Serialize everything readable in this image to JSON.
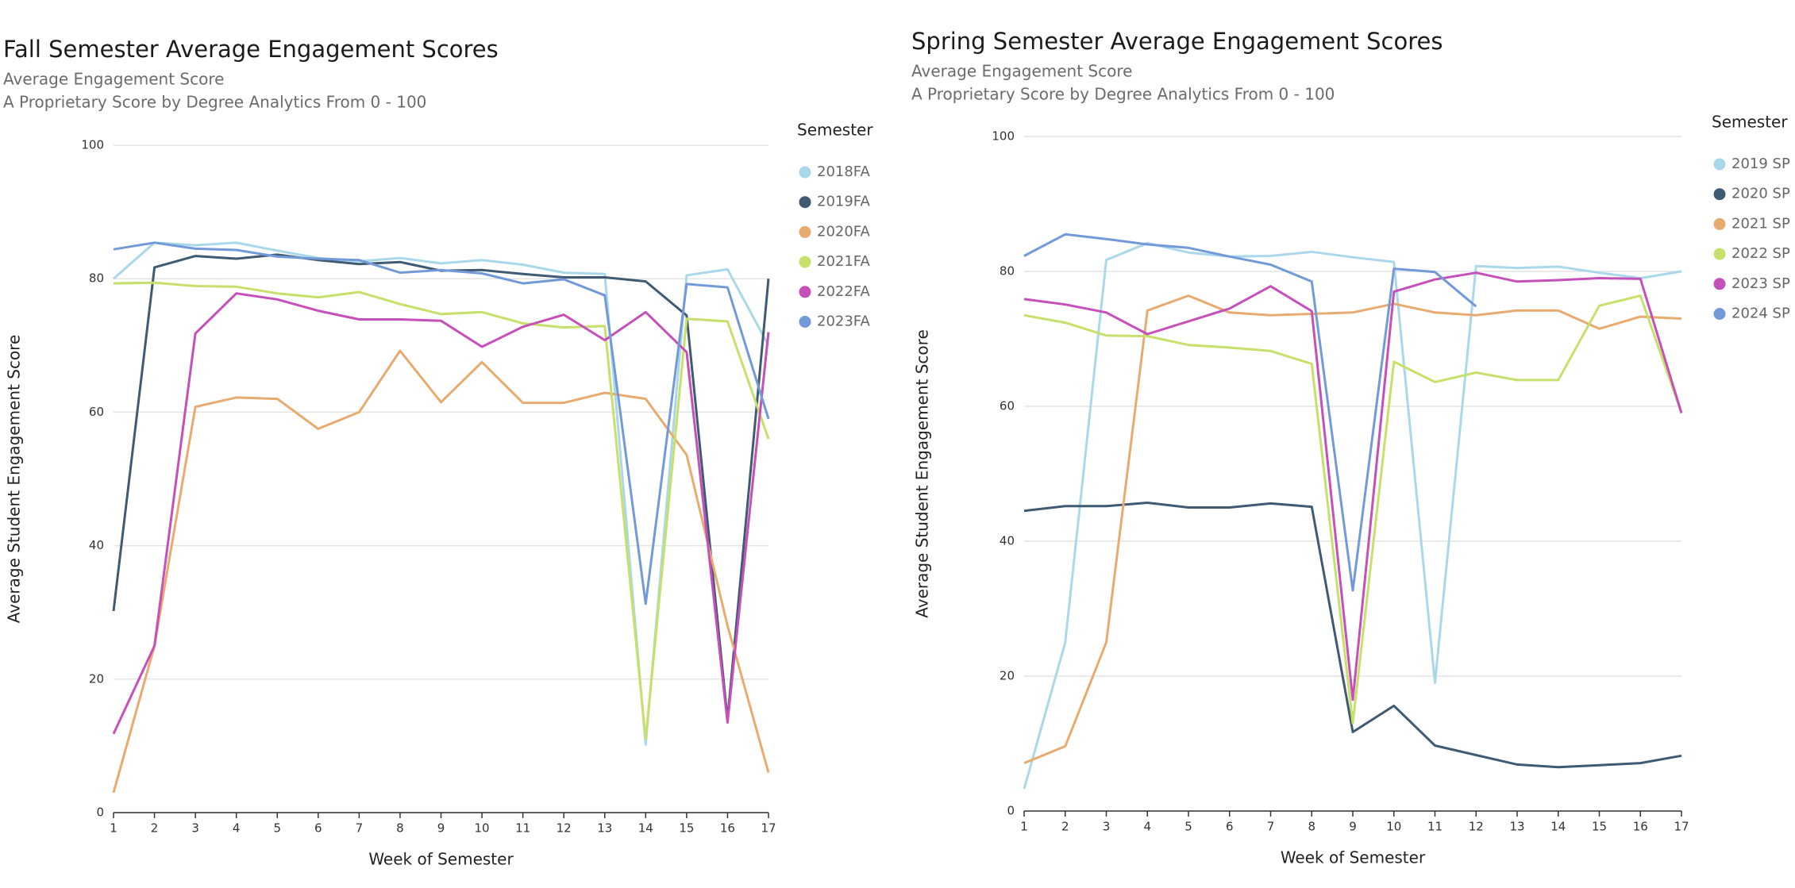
{
  "chart_data": [
    {
      "type": "line",
      "title": "Fall Semester Average Engagement Scores",
      "subtitles": [
        "Average Engagement Score",
        "A Proprietary Score by Degree Analytics From 0 - 100"
      ],
      "x_label": "Week of Semester",
      "y_label": "Average Student Engagement Score",
      "legend_title": "Semester",
      "x": [
        1,
        2,
        3,
        4,
        5,
        6,
        7,
        8,
        9,
        10,
        11,
        12,
        13,
        14,
        15,
        16,
        17
      ],
      "xlim": [
        1,
        17
      ],
      "xticks": [
        1,
        2,
        3,
        4,
        5,
        6,
        7,
        8,
        9,
        10,
        11,
        12,
        13,
        14,
        15,
        16,
        17
      ],
      "ylim": [
        0,
        100
      ],
      "yticks": [
        0,
        20,
        40,
        60,
        80,
        100
      ],
      "grid": true,
      "legend": "right",
      "series": [
        {
          "name": "2018FA",
          "color": "#a9d8ea",
          "values": [
            80.0,
            85.4,
            85.0,
            85.4,
            84.2,
            83.1,
            82.6,
            83.1,
            82.3,
            82.8,
            82.1,
            80.9,
            80.7,
            10.2,
            80.5,
            81.4,
            70.0
          ]
        },
        {
          "name": "2019FA",
          "color": "#3f5a73",
          "values": [
            30.2,
            81.7,
            83.4,
            83.0,
            83.6,
            82.8,
            82.2,
            82.5,
            81.2,
            81.3,
            80.7,
            80.2,
            80.2,
            79.6,
            74.5,
            14.0,
            80.0
          ]
        },
        {
          "name": "2020FA",
          "color": "#e8ab6f",
          "values": [
            3.0,
            25.0,
            60.8,
            62.2,
            62.0,
            57.5,
            60.0,
            69.2,
            61.5,
            67.5,
            61.4,
            61.4,
            62.9,
            62.0,
            53.6,
            28.0,
            6.0
          ]
        },
        {
          "name": "2021FA",
          "color": "#c7e06b",
          "values": [
            79.3,
            79.4,
            78.9,
            78.8,
            77.8,
            77.2,
            78.0,
            76.2,
            74.7,
            75.0,
            73.3,
            72.7,
            72.9,
            11.0,
            74.0,
            73.6,
            56.0
          ]
        },
        {
          "name": "2022FA",
          "color": "#c550b9",
          "values": [
            11.8,
            25.0,
            71.8,
            77.8,
            76.9,
            75.2,
            73.9,
            73.9,
            73.7,
            69.8,
            72.8,
            74.6,
            70.8,
            75.0,
            69.0,
            13.5,
            72.0
          ]
        },
        {
          "name": "2023FA",
          "color": "#7299d8",
          "values": [
            84.4,
            85.4,
            84.5,
            84.3,
            83.3,
            83.0,
            82.8,
            80.9,
            81.3,
            80.8,
            79.3,
            79.9,
            77.5,
            31.3,
            79.2,
            78.7,
            59.0
          ]
        }
      ]
    },
    {
      "type": "line",
      "title": "Spring Semester Average Engagement Scores",
      "subtitles": [
        "Average Engagement Score",
        "A Proprietary Score by Degree Analytics From 0 - 100"
      ],
      "x_label": "Week of Semester",
      "y_label": "Average Student Engagement Score",
      "legend_title": "Semester",
      "x": [
        1,
        2,
        3,
        4,
        5,
        6,
        7,
        8,
        9,
        10,
        11,
        12,
        13,
        14,
        15,
        16,
        17
      ],
      "xlim": [
        1,
        17
      ],
      "xticks": [
        1,
        2,
        3,
        4,
        5,
        6,
        7,
        8,
        9,
        10,
        11,
        12,
        13,
        14,
        15,
        16,
        17
      ],
      "ylim": [
        0,
        100
      ],
      "yticks": [
        0,
        20,
        40,
        60,
        80,
        100
      ],
      "grid": true,
      "legend": "right",
      "series": [
        {
          "name": "2019 SP",
          "color": "#a9d8ea",
          "values": [
            3.3,
            25.0,
            81.7,
            84.2,
            82.8,
            82.2,
            82.3,
            82.9,
            82.1,
            81.4,
            19.0,
            80.8,
            80.5,
            80.7,
            79.8,
            79.0,
            80.0
          ]
        },
        {
          "name": "2020 SP",
          "color": "#3f5a73",
          "values": [
            44.5,
            45.2,
            45.2,
            45.7,
            45.0,
            45.0,
            45.6,
            45.1,
            11.7,
            15.6,
            9.7,
            8.3,
            6.9,
            6.5,
            6.8,
            7.1,
            8.2
          ]
        },
        {
          "name": "2021 SP",
          "color": "#e8ab6f",
          "values": [
            7.1,
            9.6,
            25.0,
            74.2,
            76.4,
            73.9,
            73.5,
            73.7,
            73.9,
            75.2,
            73.9,
            73.5,
            74.2,
            74.2,
            71.5,
            73.3,
            73.0
          ]
        },
        {
          "name": "2022 SP",
          "color": "#c7e06b",
          "values": [
            73.5,
            72.4,
            70.5,
            70.4,
            69.1,
            68.7,
            68.2,
            66.3,
            13.0,
            66.6,
            63.6,
            65.0,
            63.9,
            63.9,
            74.9,
            76.4,
            59.0
          ]
        },
        {
          "name": "2023 SP",
          "color": "#c550b9",
          "values": [
            75.9,
            75.1,
            73.9,
            70.7,
            72.6,
            74.5,
            77.8,
            74.1,
            16.5,
            77.0,
            78.8,
            79.8,
            78.5,
            78.7,
            79.0,
            78.9,
            59.0
          ]
        },
        {
          "name": "2024 SP",
          "color": "#7299d8",
          "values": [
            82.3,
            85.5,
            84.8,
            84.0,
            83.5,
            82.2,
            81.0,
            78.5,
            32.7,
            80.4,
            79.9,
            74.8,
            null,
            null,
            null,
            null,
            null
          ]
        }
      ]
    }
  ]
}
